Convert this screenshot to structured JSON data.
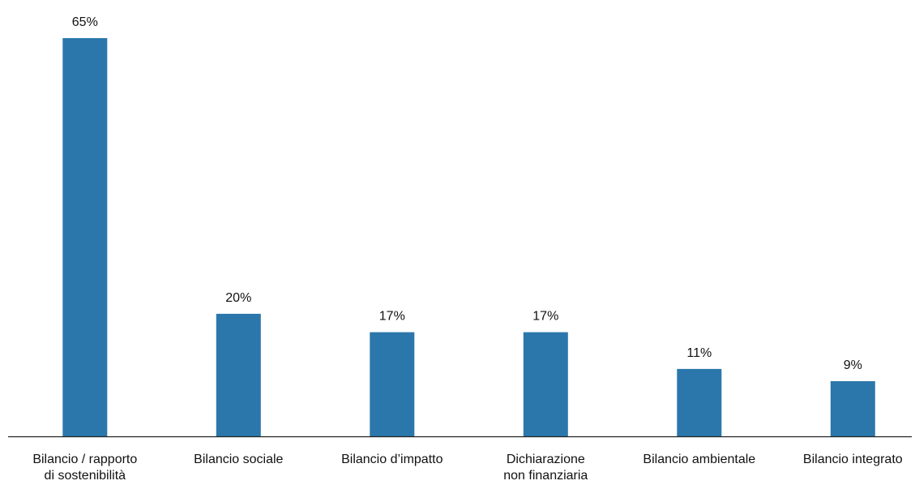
{
  "chart_data": {
    "type": "bar",
    "title": "",
    "xlabel": "",
    "ylabel": "",
    "ylim": [
      0,
      65
    ],
    "grid": false,
    "categories": [
      [
        "Bilancio / rapporto",
        "di sostenibilità"
      ],
      [
        "Bilancio sociale"
      ],
      [
        "Bilancio d’impatto"
      ],
      [
        "Dichiarazione",
        "non finanziaria"
      ],
      [
        "Bilancio ambientale"
      ],
      [
        "Bilancio integrato"
      ]
    ],
    "values": [
      65,
      20,
      17,
      17,
      11,
      9
    ],
    "value_labels": [
      "65%",
      "20%",
      "17%",
      "17%",
      "11%",
      "9%"
    ],
    "bar_color": "#2b77ab",
    "axis_color": "#222222"
  }
}
